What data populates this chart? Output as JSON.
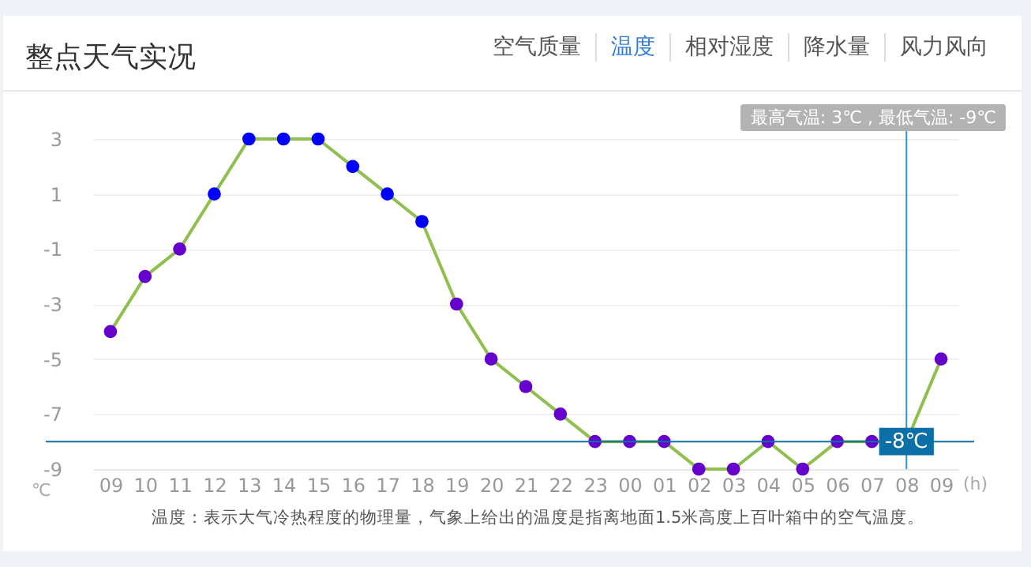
{
  "chart_data": {
    "type": "line",
    "title": "整点天气实况",
    "xlabel": "(h)",
    "ylabel": "℃",
    "categories": [
      "09",
      "10",
      "11",
      "12",
      "13",
      "14",
      "15",
      "16",
      "17",
      "18",
      "19",
      "20",
      "21",
      "22",
      "23",
      "00",
      "01",
      "02",
      "03",
      "04",
      "05",
      "06",
      "07",
      "08",
      "09"
    ],
    "series": [
      {
        "color": "#8fbf4f",
        "colors": [
          "#6600cc",
          "#6600cc",
          "#6600cc",
          "#0000ff",
          "#0000ff",
          "#0000ff",
          "#0000ff",
          "#0000ff",
          "#0000ff",
          "#0000ff",
          "#6600cc",
          "#6600cc",
          "#6600cc",
          "#6600cc",
          "#6600cc",
          "#6600cc",
          "#6600cc",
          "#6600cc",
          "#6600cc",
          "#6600cc",
          "#6600cc",
          "#6600cc",
          "#6600cc",
          "#6600cc",
          "#6600cc"
        ],
        "values": [
          -4,
          -2,
          -1,
          1,
          3,
          3,
          3,
          2,
          1,
          0,
          -3,
          -5,
          -6,
          -7,
          -8,
          -8,
          -8,
          -9,
          -9,
          -8,
          -9,
          -8,
          -8,
          -8,
          -5
        ]
      }
    ],
    "ylim": [
      -9,
      3
    ],
    "yticks": [
      -9,
      -7,
      -5,
      -3,
      -1,
      1,
      3
    ],
    "grid": "y",
    "marker": "circle",
    "line_style": "solid",
    "ref_lines": [
      {
        "axis": "x",
        "value": "08",
        "color": "#3a8fd0"
      },
      {
        "axis": "y",
        "value": -8,
        "label": "-8℃",
        "color": "#0b6fa8"
      }
    ],
    "annotations": [
      "空气质量",
      "温度",
      "相对湿度",
      "降水量",
      "风力风向",
      "最高气温: 3℃ , 最低气温: -9℃",
      "温度：表示大气冷热程度的物理量，气象上给出的温度是指离地面1.5米高度上百叶箱中的空气温度。"
    ]
  }
}
